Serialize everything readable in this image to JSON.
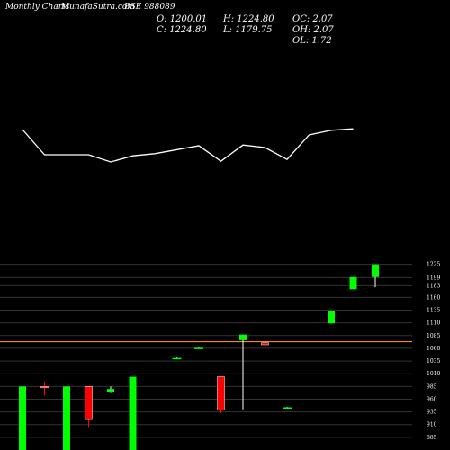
{
  "header": {
    "brand": "Monthly Charts",
    "site": "- MunafaSutra.com",
    "symbol": "BSE 988089",
    "open": "O: 1200.01",
    "close": "C: 1224.80",
    "high": "H: 1224.80",
    "low": "L: 1179.75",
    "oc": "OC: 2.07",
    "oh": "OH: 2.07",
    "ol": "OL: 1.72"
  },
  "chart_data": {
    "type": "candlestick",
    "title": "BSE 988089",
    "colors": {
      "up": "#00ff00",
      "down": "#ff0000",
      "line": "#ffffff",
      "grid": "#333333",
      "ref": "#ff8800",
      "bg": "#000000"
    },
    "y_ticks": [
      1225,
      1199,
      1183,
      1160,
      1135,
      1110,
      1085,
      1060,
      1035,
      1010,
      985,
      960,
      935,
      910,
      885
    ],
    "ref_line": 1073,
    "y_range": [
      860,
      1235
    ],
    "candles": [
      {
        "open": 860,
        "high": 985,
        "low": 860,
        "close": 985
      },
      {
        "open": 985,
        "high": 995,
        "low": 967,
        "close": 983
      },
      {
        "open": 860,
        "high": 985,
        "low": 860,
        "close": 985
      },
      {
        "open": 985,
        "high": 985,
        "low": 905,
        "close": 920
      },
      {
        "open": 973,
        "high": 985,
        "low": 972,
        "close": 980
      },
      {
        "open": 860,
        "high": 1004,
        "low": 860,
        "close": 1004
      },
      null,
      {
        "open": 1041,
        "high": 1042,
        "low": 1040,
        "close": 1041
      },
      {
        "open": 1061,
        "high": 1062,
        "low": 1060,
        "close": 1061
      },
      {
        "open": 1004,
        "high": 1004,
        "low": 932,
        "close": 939
      },
      {
        "open": 1076,
        "high": 1087,
        "low": 940,
        "close": 1087
      },
      {
        "open": 1071,
        "high": 1072,
        "low": 1059,
        "close": 1067
      },
      {
        "open": 944,
        "high": 945,
        "low": 943,
        "close": 944
      },
      null,
      {
        "open": 1109,
        "high": 1133,
        "low": 1109,
        "close": 1133
      },
      {
        "open": 1176,
        "high": 1200,
        "low": 1176,
        "close": 1200
      },
      {
        "open": 1200,
        "high": 1225,
        "low": 1180,
        "close": 1225
      }
    ],
    "line_series": [
      {
        "i": 0,
        "v": 1025
      },
      {
        "i": 1,
        "v": 955
      },
      {
        "i": 3,
        "v": 955
      },
      {
        "i": 4,
        "v": 935
      },
      {
        "i": 5,
        "v": 952
      },
      {
        "i": 6,
        "v": 958
      },
      {
        "i": 8,
        "v": 980
      },
      {
        "i": 9,
        "v": 937
      },
      {
        "i": 10,
        "v": 982
      },
      {
        "i": 11,
        "v": 975
      },
      {
        "i": 12,
        "v": 942
      },
      {
        "i": 13,
        "v": 1010
      },
      {
        "i": 14,
        "v": 1023
      },
      {
        "i": 15,
        "v": 1027
      }
    ],
    "line_range": [
      860,
      1235
    ]
  }
}
